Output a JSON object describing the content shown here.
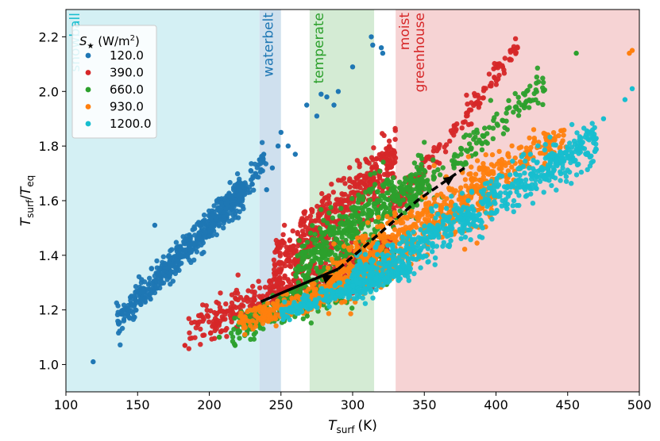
{
  "chart_data": {
    "type": "scatter",
    "title": "",
    "xlabel": {
      "main": "T",
      "sub": "surf",
      "unit": "(K)"
    },
    "ylabel": {
      "num": "T",
      "num_sub": "surf",
      "den": "T",
      "den_sub": "eq"
    },
    "xlim": [
      100,
      500
    ],
    "ylim": [
      0.9,
      2.3
    ],
    "xticks": [
      100,
      150,
      200,
      250,
      300,
      350,
      400,
      450,
      500
    ],
    "xtick_labels": [
      "100",
      "150",
      "200",
      "250",
      "300",
      "350",
      "400",
      "450",
      "500"
    ],
    "yticks": [
      1.0,
      1.2,
      1.4,
      1.6,
      1.8,
      2.0,
      2.2
    ],
    "ytick_labels": [
      "1.0",
      "1.2",
      "1.4",
      "1.6",
      "1.8",
      "2.0",
      "2.2"
    ],
    "grid": false,
    "legend": {
      "placement": "top-left",
      "title": {
        "main": "S",
        "star": "★",
        "unit": " (W/m",
        "sup": "2",
        "close": ")"
      },
      "entries": [
        {
          "label": "120.0",
          "color": "#1f77b4"
        },
        {
          "label": "390.0",
          "color": "#d62728"
        },
        {
          "label": "660.0",
          "color": "#2ca02c"
        },
        {
          "label": "930.0",
          "color": "#ff7f0e"
        },
        {
          "label": "1200.0",
          "color": "#17becf"
        }
      ]
    },
    "regimes": [
      {
        "name": "snowball",
        "lines": [
          "snowball"
        ],
        "x_range": [
          100,
          235
        ],
        "color": "#17becf",
        "fill": "#d4f0f4"
      },
      {
        "name": "waterbelt",
        "lines": [
          "waterbelt"
        ],
        "x_range": [
          235,
          250
        ],
        "color": "#1f77b4",
        "fill": "#cfe0ee"
      },
      {
        "name": "temperate",
        "lines": [
          "temperate"
        ],
        "x_range": [
          270,
          315
        ],
        "color": "#2ca02c",
        "fill": "#d4ebd4"
      },
      {
        "name": "moist greenhouse",
        "lines": [
          "moist",
          "greenhouse"
        ],
        "x_range": [
          330,
          500
        ],
        "color": "#d62728",
        "fill": "#f6d3d4"
      }
    ],
    "series": [
      {
        "name": "120.0",
        "color": "#1f77b4",
        "clusters": [
          {
            "x_range": [
              135,
              225
            ],
            "y_at_start": 1.15,
            "y_at_end": 1.65,
            "spread": 0.06,
            "n": 600,
            "curve": 1.3
          },
          {
            "x_range": [
              218,
              240
            ],
            "y_at_start": 1.55,
            "y_at_end": 1.78,
            "spread": 0.06,
            "n": 40,
            "curve": 1.0
          }
        ],
        "points": [
          [
            119,
            1.01
          ],
          [
            162,
            1.51
          ],
          [
            229,
            1.71
          ],
          [
            235,
            1.75
          ],
          [
            238,
            1.77
          ],
          [
            240,
            1.64
          ],
          [
            244,
            1.72
          ],
          [
            248,
            1.8
          ],
          [
            250,
            1.85
          ],
          [
            255,
            1.8
          ],
          [
            260,
            1.77
          ],
          [
            268,
            1.95
          ],
          [
            275,
            1.91
          ],
          [
            278,
            1.99
          ],
          [
            282,
            1.98
          ],
          [
            287,
            1.95
          ],
          [
            290,
            2.0
          ],
          [
            300,
            2.09
          ],
          [
            313,
            2.2
          ],
          [
            314,
            2.17
          ],
          [
            320,
            2.16
          ],
          [
            321,
            2.14
          ]
        ]
      },
      {
        "name": "390.0",
        "color": "#d62728",
        "clusters": [
          {
            "x_range": [
              185,
              330
            ],
            "y_at_start": 1.13,
            "y_at_end": 1.42,
            "spread": 0.09,
            "n": 500,
            "curve": 1.2
          },
          {
            "x_range": [
              245,
              330
            ],
            "y_at_start": 1.35,
            "y_at_end": 1.75,
            "spread": 0.12,
            "n": 500,
            "curve": 1.0
          },
          {
            "x_range": [
              325,
              415
            ],
            "y_at_start": 1.55,
            "y_at_end": 2.15,
            "spread": 0.06,
            "n": 150,
            "curve": 1.0
          }
        ],
        "points": [
          [
            183,
            1.07
          ],
          [
            207,
            1.1
          ],
          [
            208,
            1.12
          ],
          [
            399,
            2.05
          ],
          [
            410,
            2.15
          ],
          [
            415,
            2.16
          ]
        ]
      },
      {
        "name": "660.0",
        "color": "#2ca02c",
        "clusters": [
          {
            "x_range": [
              215,
              330
            ],
            "y_at_start": 1.12,
            "y_at_end": 1.38,
            "spread": 0.07,
            "n": 450,
            "curve": 1.2
          },
          {
            "x_range": [
              260,
              350
            ],
            "y_at_start": 1.35,
            "y_at_end": 1.7,
            "spread": 0.12,
            "n": 450,
            "curve": 1.0
          },
          {
            "x_range": [
              340,
              435
            ],
            "y_at_start": 1.6,
            "y_at_end": 2.03,
            "spread": 0.07,
            "n": 150,
            "curve": 1.0
          }
        ],
        "points": [
          [
            207,
            1.1
          ],
          [
            218,
            1.07
          ],
          [
            230,
            1.16
          ],
          [
            240,
            1.19
          ],
          [
            456,
            2.14
          ]
        ]
      },
      {
        "name": "930.0",
        "color": "#ff7f0e",
        "clusters": [
          {
            "x_range": [
              220,
              330
            ],
            "y_at_start": 1.15,
            "y_at_end": 1.35,
            "spread": 0.05,
            "n": 350,
            "curve": 1.2
          },
          {
            "x_range": [
              280,
              400
            ],
            "y_at_start": 1.3,
            "y_at_end": 1.65,
            "spread": 0.12,
            "n": 450,
            "curve": 1.0
          },
          {
            "x_range": [
              350,
              450
            ],
            "y_at_start": 1.55,
            "y_at_end": 1.85,
            "spread": 0.08,
            "n": 200,
            "curve": 1.0
          }
        ],
        "points": [
          [
            224,
            1.16
          ],
          [
            234,
            1.17
          ],
          [
            493,
            2.14
          ],
          [
            495,
            2.15
          ]
        ]
      },
      {
        "name": "1200.0",
        "color": "#17becf",
        "clusters": [
          {
            "x_range": [
              250,
              340
            ],
            "y_at_start": 1.19,
            "y_at_end": 1.35,
            "spread": 0.04,
            "n": 300,
            "curve": 1.2
          },
          {
            "x_range": [
              300,
              470
            ],
            "y_at_start": 1.3,
            "y_at_end": 1.82,
            "spread": 0.09,
            "n": 650,
            "curve": 1.0
          }
        ],
        "points": [
          [
            458,
            1.79
          ],
          [
            475,
            1.9
          ],
          [
            490,
            1.97
          ],
          [
            495,
            2.01
          ]
        ]
      }
    ],
    "arrow_path": {
      "solid": [
        [
          236,
          1.23
        ],
        [
          290,
          1.35
        ]
      ],
      "dashed": [
        [
          290,
          1.35
        ],
        [
          310,
          1.44
        ],
        [
          345,
          1.6
        ],
        [
          378,
          1.72
        ]
      ],
      "arrow_heads": [
        [
          283,
          1.32
        ],
        [
          368,
          1.68
        ]
      ],
      "color": "#000000"
    }
  }
}
